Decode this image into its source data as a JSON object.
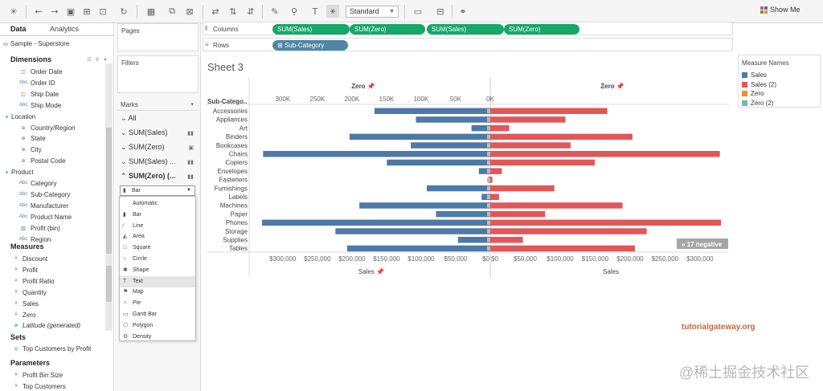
{
  "toolbar": {
    "view_mode": "Standard",
    "show_me": "Show Me"
  },
  "left_pane": {
    "tabs": [
      "Data",
      "Analytics"
    ],
    "datasource": "Sample - Superstore",
    "dimensions_header": "Dimensions",
    "dimensions": [
      {
        "label": "Order Date",
        "type": "date"
      },
      {
        "label": "Order ID",
        "type": "abc"
      },
      {
        "label": "Ship Date",
        "type": "date"
      },
      {
        "label": "Ship Mode",
        "type": "abc"
      },
      {
        "label": "Location",
        "type": "group"
      },
      {
        "label": "Country/Region",
        "type": "geo"
      },
      {
        "label": "State",
        "type": "geo"
      },
      {
        "label": "City",
        "type": "geo"
      },
      {
        "label": "Postal Code",
        "type": "geo"
      },
      {
        "label": "Product",
        "type": "group"
      },
      {
        "label": "Category",
        "type": "abc"
      },
      {
        "label": "Sub-Category",
        "type": "abc"
      },
      {
        "label": "Manufacturer",
        "type": "abc"
      },
      {
        "label": "Product Name",
        "type": "abc"
      },
      {
        "label": "Profit (bin)",
        "type": "bin"
      },
      {
        "label": "Region",
        "type": "abc"
      }
    ],
    "measures_header": "Measures",
    "measures": [
      {
        "label": "Discount",
        "italic": false
      },
      {
        "label": "Profit",
        "italic": false
      },
      {
        "label": "Profit Ratio",
        "italic": false
      },
      {
        "label": "Quantity",
        "italic": false
      },
      {
        "label": "Sales",
        "italic": false
      },
      {
        "label": "Zero",
        "italic": false
      },
      {
        "label": "Latitude (generated)",
        "italic": true
      }
    ],
    "sets_header": "Sets",
    "sets": [
      "Top Customers by Profit"
    ],
    "parameters_header": "Parameters",
    "parameters": [
      "Profit Bin Size",
      "Top Customers"
    ]
  },
  "shelves": {
    "pages": "Pages",
    "filters": "Filters",
    "marks": "Marks",
    "mark_cards": [
      "All",
      "SUM(Sales)",
      "SUM(Zero)",
      "SUM(Sales) ...",
      "SUM(Zero) (..."
    ],
    "mark_type_current": "Bar",
    "mark_type_options": [
      "Automatic",
      "Bar",
      "Line",
      "Area",
      "Square",
      "Circle",
      "Shape",
      "Text",
      "Map",
      "Pie",
      "Gantt Bar",
      "Polygon",
      "Density"
    ],
    "mark_type_highlight": "Text",
    "columns_label": "Columns",
    "rows_label": "Rows",
    "column_pills": [
      "SUM(Sales)",
      "SUM(Zero)",
      "SUM(Sales)",
      "SUM(Zero)"
    ],
    "row_pills": [
      "Sub-Category"
    ]
  },
  "sheet": {
    "title": "Sheet 3",
    "negative_badge": "17 negative"
  },
  "legend": {
    "title": "Measure Names",
    "items": [
      {
        "label": "Sales",
        "color": "#4e79a7"
      },
      {
        "label": "Sales (2)",
        "color": "#e15759"
      },
      {
        "label": "Zero",
        "color": "#f28e2b"
      },
      {
        "label": "Zero (2)",
        "color": "#76b7b2"
      }
    ]
  },
  "chart_data": {
    "type": "bar",
    "row_header": "Sub-Catego..",
    "categories": [
      "Accessories",
      "Appliances",
      "Art",
      "Binders",
      "Bookcases",
      "Chairs",
      "Copiers",
      "Envelopes",
      "Fasteners",
      "Furnishings",
      "Labels",
      "Machines",
      "Paper",
      "Phones",
      "Storage",
      "Supplies",
      "Tables"
    ],
    "series": [
      {
        "name": "Sales",
        "values": [
          167380,
          107532,
          27119,
          203413,
          114880,
          328449,
          149528,
          16476,
          3024,
          91705,
          12486,
          189239,
          78479,
          330007,
          223844,
          46674,
          206966
        ]
      },
      {
        "name": "Sales (2)",
        "values": [
          167380,
          107532,
          27119,
          203413,
          114880,
          328449,
          149528,
          16476,
          3024,
          91705,
          12486,
          189239,
          78479,
          330007,
          223844,
          46674,
          206966
        ]
      }
    ],
    "left_panel": {
      "top_header": "Zero",
      "top_ticks": [
        "300K",
        "250K",
        "200K",
        "150K",
        "100K",
        "50K",
        "0K"
      ],
      "bottom_ticks": [
        "$300,000",
        "$250,000",
        "$200,000",
        "$150,000",
        "$100,000",
        "$50,000",
        "$0"
      ],
      "bottom_label": "Sales",
      "range": [
        0,
        330000
      ],
      "reversed": true
    },
    "right_panel": {
      "top_header": "Zero",
      "bottom_ticks": [
        "$0",
        "$50,000",
        "$100,000",
        "$150,000",
        "$200,000",
        "$250,000",
        "$300,000"
      ],
      "bottom_label": "Sales",
      "range": [
        0,
        330000
      ]
    }
  },
  "watermarks": {
    "site": "tutorialgateway.org",
    "cn": "@稀土掘金技术社区"
  }
}
